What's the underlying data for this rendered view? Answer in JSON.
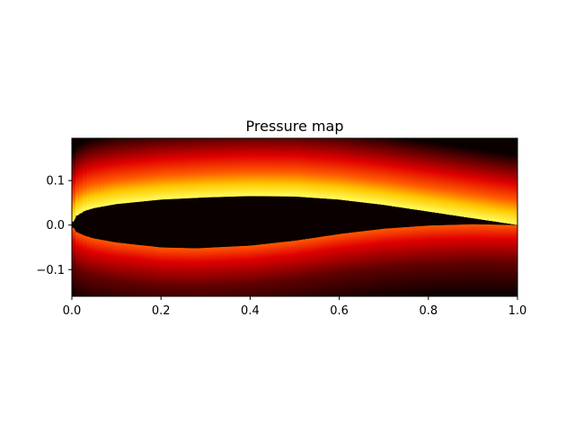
{
  "chart_data": {
    "type": "heatmap",
    "title": "Pressure map",
    "xlabel": "",
    "ylabel": "",
    "xlim": [
      0.0,
      1.0
    ],
    "ylim": [
      -0.16,
      0.195
    ],
    "x_ticks": [
      0.0,
      0.2,
      0.4,
      0.6,
      0.8,
      1.0
    ],
    "x_tick_labels": [
      "0.0",
      "0.2",
      "0.4",
      "0.6",
      "0.8",
      "1.0"
    ],
    "y_ticks": [
      0.1,
      0.0,
      -0.1
    ],
    "y_tick_labels": [
      "0.1",
      "0.0",
      "−0.1"
    ],
    "colormap": "hot",
    "colormap_stops": [
      "#0b0000",
      "#e00000",
      "#ff5a00",
      "#ffc800",
      "#ffff60"
    ],
    "body_color": "#0b0000",
    "grid": false,
    "airfoil": {
      "upper_surface": [
        [
          0.0,
          0.0
        ],
        [
          0.01,
          0.02
        ],
        [
          0.03,
          0.032
        ],
        [
          0.05,
          0.038
        ],
        [
          0.1,
          0.047
        ],
        [
          0.2,
          0.057
        ],
        [
          0.3,
          0.062
        ],
        [
          0.4,
          0.065
        ],
        [
          0.5,
          0.064
        ],
        [
          0.6,
          0.057
        ],
        [
          0.7,
          0.045
        ],
        [
          0.8,
          0.03
        ],
        [
          0.9,
          0.015
        ],
        [
          1.0,
          0.0
        ]
      ],
      "lower_surface": [
        [
          0.0,
          0.0
        ],
        [
          0.01,
          -0.015
        ],
        [
          0.03,
          -0.024
        ],
        [
          0.05,
          -0.03
        ],
        [
          0.1,
          -0.039
        ],
        [
          0.2,
          -0.05
        ],
        [
          0.28,
          -0.052
        ],
        [
          0.4,
          -0.046
        ],
        [
          0.5,
          -0.035
        ],
        [
          0.6,
          -0.02
        ],
        [
          0.7,
          -0.008
        ],
        [
          0.8,
          -0.001
        ],
        [
          0.9,
          0.002
        ],
        [
          1.0,
          0.0
        ]
      ]
    }
  }
}
